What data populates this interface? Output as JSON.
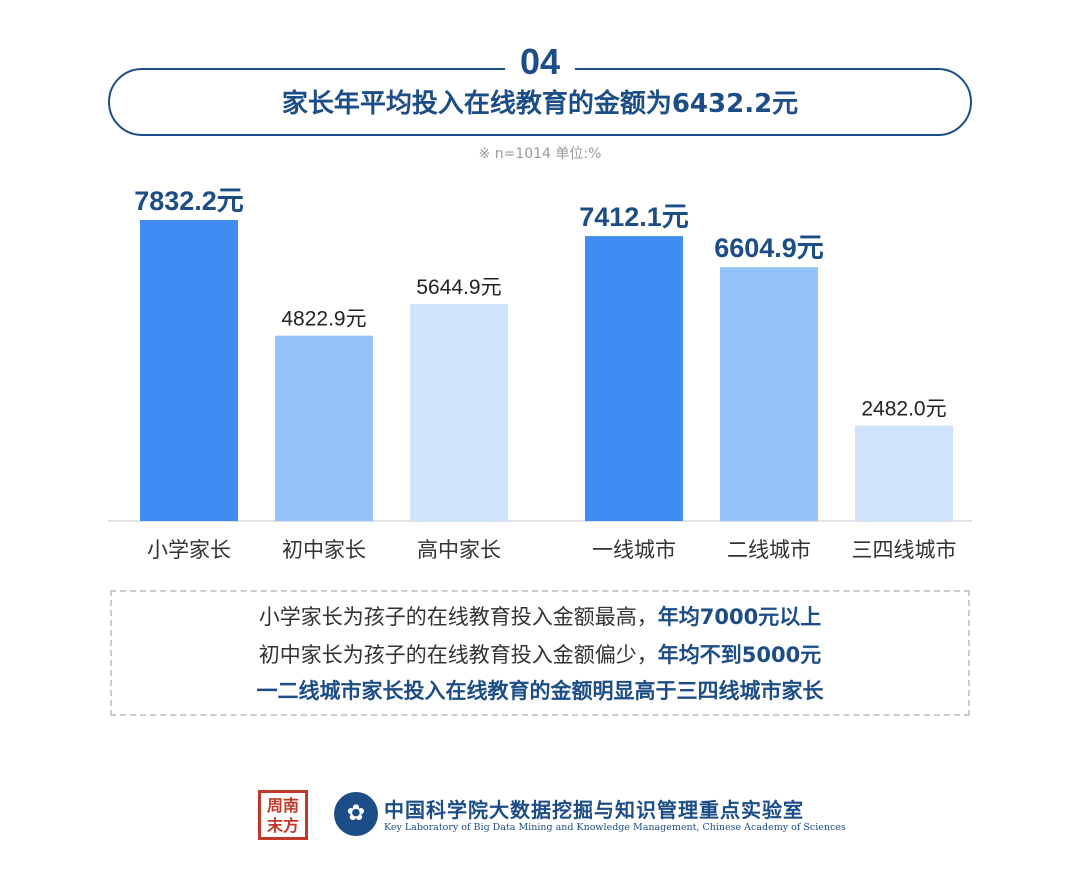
{
  "header": {
    "badge": "04",
    "title": "家长年平均投入在线教育的金额为6432.2元",
    "subtitle": "※ n=1014  单位:%"
  },
  "chart_data": {
    "type": "bar",
    "categories": [
      "小学家长",
      "初中家长",
      "高中家长",
      "一线城市",
      "二线城市",
      "三四线城市"
    ],
    "values": [
      7832.2,
      4822.9,
      5644.9,
      7412.1,
      6604.9,
      2482.0
    ],
    "data_labels": [
      "7832.2元",
      "4822.9元",
      "5644.9元",
      "7412.1元",
      "6604.9元",
      "2482.0元"
    ],
    "bar_colors": [
      "#3f8cf2",
      "#94c3fa",
      "#cfe3fd",
      "#3f8cf2",
      "#94c3fa",
      "#cfe3fd"
    ],
    "label_emphasis": [
      true,
      false,
      false,
      true,
      true,
      false
    ],
    "title": "",
    "xlabel": "",
    "ylabel": "",
    "ylim": [
      0,
      8500
    ],
    "grid": false,
    "legend": "none"
  },
  "notes": {
    "line1": {
      "text": "小学家长为孩子的在线教育投入金额最高，",
      "highlight": "年均7000元以上"
    },
    "line2": {
      "text": "初中家长为孩子的在线教育投入金额偏少，",
      "highlight": "年均不到5000元"
    },
    "line3": {
      "text": "",
      "highlight": "一二线城市家长投入在线教育的金额明显高于三四线城市家长"
    }
  },
  "footer": {
    "logo_text": "南方周末",
    "logo_char_1": "周",
    "logo_char_2": "南",
    "logo_char_3": "末",
    "logo_char_4": "方",
    "lab_name_cn": "中国科学院大数据挖掘与知识管理重点实验室",
    "lab_name_en": "Key Laboratory of Big Data Mining and Knowledge Management, Chinese Academy of Sciences"
  },
  "colors": {
    "primary": "#1c4d86",
    "bar_dark": "#3f8cf2",
    "bar_mid": "#94c3fa",
    "bar_light": "#cfe3fd"
  }
}
